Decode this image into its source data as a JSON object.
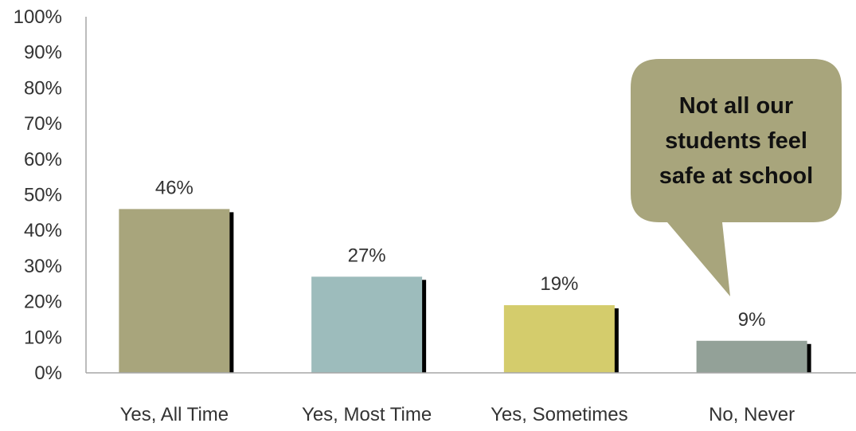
{
  "chart_data": {
    "type": "bar",
    "categories": [
      "Yes, All Time",
      "Yes, Most Time",
      "Yes, Sometimes",
      "No, Never"
    ],
    "values": [
      46,
      27,
      19,
      9
    ],
    "data_labels": [
      "46%",
      "27%",
      "19%",
      "9%"
    ],
    "ylim": [
      0,
      100
    ],
    "y_ticks": [
      "0%",
      "10%",
      "20%",
      "30%",
      "40%",
      "50%",
      "60%",
      "70%",
      "80%",
      "90%",
      "100%"
    ],
    "bar_colors": [
      "#a8a57c",
      "#9dbcbc",
      "#d4cc6c",
      "#93a198"
    ],
    "shadow_color": "#000000",
    "grid": false,
    "legend": "none",
    "annotation": {
      "text": "Not all our students feel safe at school",
      "fill": "#a8a57c",
      "points_to": "No, Never"
    }
  }
}
